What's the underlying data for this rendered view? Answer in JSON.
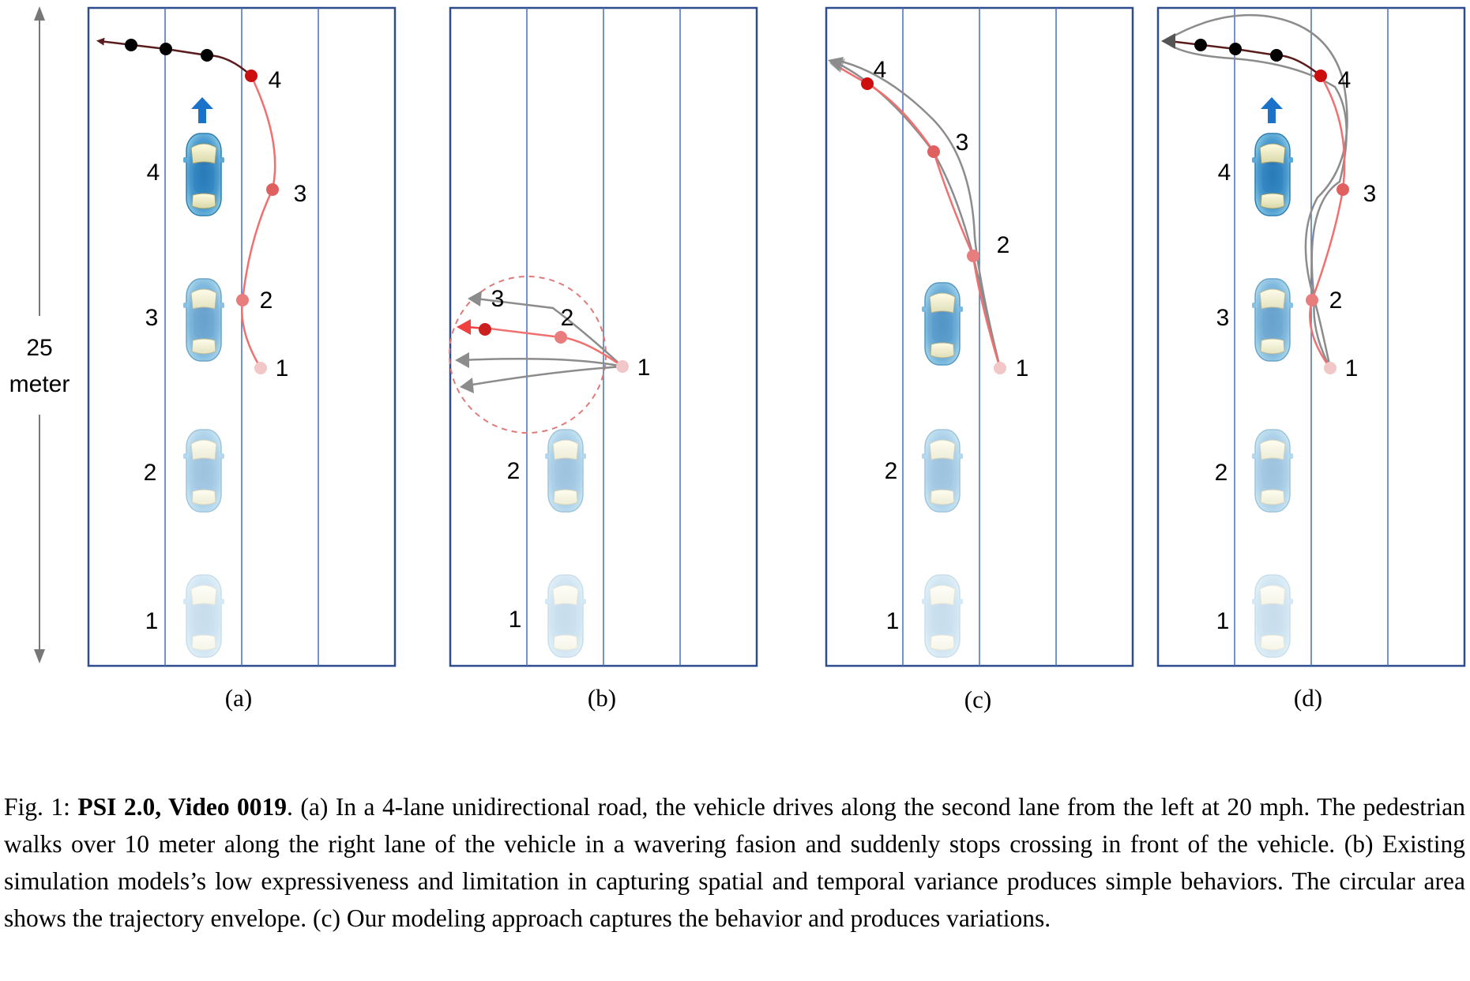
{
  "scale_label": {
    "value": "25",
    "unit": "meter"
  },
  "panels": [
    {
      "label": "(a)",
      "car_labels": [
        "1",
        "2",
        "3",
        "4"
      ],
      "ped_labels": [
        "1",
        "2",
        "3",
        "4"
      ]
    },
    {
      "label": "(b)",
      "car_labels": [
        "1",
        "2"
      ],
      "ped_labels": [
        "1",
        "2",
        "3"
      ]
    },
    {
      "label": "(c)",
      "car_labels": [
        "1",
        "2"
      ],
      "ped_labels": [
        "1",
        "2",
        "3",
        "4"
      ]
    },
    {
      "label": "(d)",
      "car_labels": [
        "1",
        "2",
        "3",
        "4"
      ],
      "ped_labels": [
        "1",
        "2",
        "3",
        "4"
      ]
    }
  ],
  "colors": {
    "lane_border": "#2f4d8e",
    "lane_line": "#4a6fb5",
    "ped_path": "#f07070",
    "ped_future": "#5a1c1c",
    "alt_path": "#8c8c8c",
    "arrow_blue": "#1a73c8",
    "envelope": "#e07a7a"
  },
  "caption": {
    "prefix": "Fig. 1: ",
    "bold": "PSI 2.0, Video 0019",
    "text": ". (a) In a 4-lane unidirectional road, the vehicle drives along the second lane from the left at 20 mph. The pedestrian walks over 10 meter along the right lane of the vehicle in a wavering fasion  and suddenly stops crossing in front of the vehicle. (b) Existing simulation models’s low expressiveness and limitation in capturing spatial and temporal variance produces simple behaviors. The circular area shows the trajectory envelope. (c) Our modeling approach captures the behavior and produces variations."
  }
}
